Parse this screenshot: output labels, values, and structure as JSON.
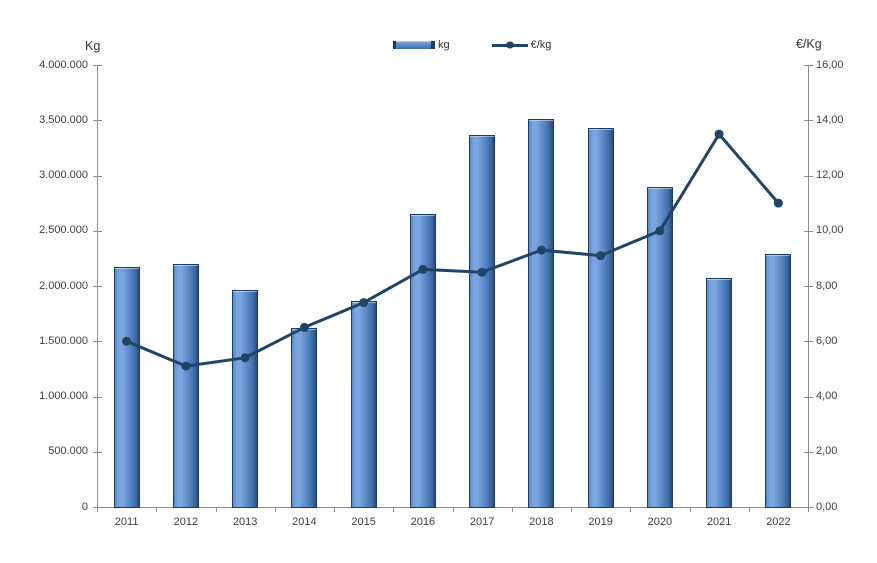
{
  "chart_data": {
    "type": "bar+line",
    "title": "",
    "categories": [
      "2011",
      "2012",
      "2013",
      "2014",
      "2015",
      "2016",
      "2017",
      "2018",
      "2019",
      "2020",
      "2021",
      "2022"
    ],
    "series": [
      {
        "name": "kg",
        "type": "bar",
        "axis": "left",
        "values": [
          2170000,
          2200000,
          1960000,
          1620000,
          1860000,
          2650000,
          3370000,
          3510000,
          3430000,
          2900000,
          2070000,
          2290000
        ]
      },
      {
        "name": "€/kg",
        "type": "line",
        "axis": "right",
        "values": [
          6.0,
          5.1,
          5.4,
          6.5,
          7.4,
          8.6,
          8.5,
          9.3,
          9.1,
          10.0,
          13.5,
          11.0
        ]
      }
    ],
    "left_axis": {
      "title": "Kg",
      "min": 0,
      "max": 4000000,
      "tick_step": 500000,
      "tick_labels": [
        "0",
        "500.000",
        "1.000.000",
        "1.500.000",
        "2.000.000",
        "2.500.000",
        "3.000.000",
        "3.500.000",
        "4.000.000"
      ]
    },
    "right_axis": {
      "title": "€/Kg",
      "min": 0,
      "max": 16,
      "tick_step": 2,
      "tick_labels": [
        "0,00",
        "2,00",
        "4,00",
        "6,00",
        "8,00",
        "10,00",
        "12,00",
        "14,00",
        "16,00"
      ]
    },
    "grid": false,
    "legend_position": "top-center",
    "colors": {
      "bar_fill": "#5b8bc9",
      "bar_fill_light": "#7ba5de",
      "bar_fill_dark": "#3e6ba5",
      "bar_border": "#1c3c66",
      "line": "#1f4466",
      "axis": "#8c8c8c",
      "text": "#3f3f3f"
    }
  }
}
